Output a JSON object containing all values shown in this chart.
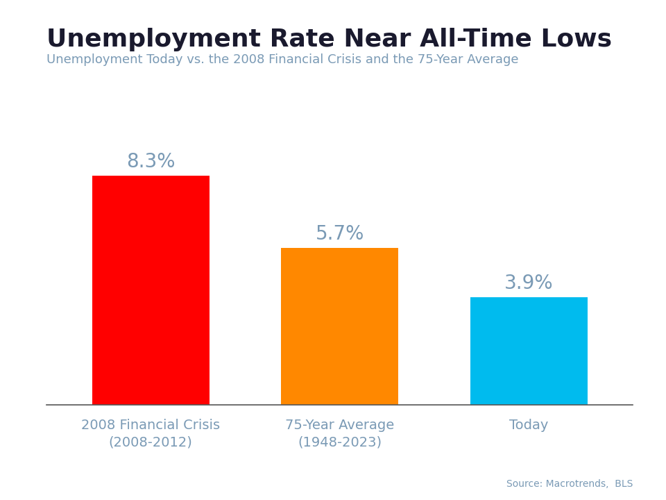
{
  "title": "Unemployment Rate Near All-Time Lows",
  "subtitle": "Unemployment Today vs. the 2008 Financial Crisis and the 75-Year Average",
  "categories": [
    "2008 Financial Crisis\n(2008-2012)",
    "75-Year Average\n(1948-2023)",
    "Today"
  ],
  "values": [
    8.3,
    5.7,
    3.9
  ],
  "bar_colors": [
    "#ff0000",
    "#ff8800",
    "#00bbee"
  ],
  "value_labels": [
    "8.3%",
    "5.7%",
    "3.9%"
  ],
  "source_text": "Source: Macrotrends,  BLS",
  "top_bar_color": "#29abe2",
  "background_color": "#ffffff",
  "title_color": "#1a1a2e",
  "subtitle_color": "#7a9ab5",
  "tick_label_color": "#7a9ab5",
  "value_label_color": "#7a9ab5",
  "source_color": "#7a9ab5",
  "ylim": [
    0,
    10.5
  ],
  "bar_width": 0.62,
  "title_fontsize": 26,
  "subtitle_fontsize": 13,
  "value_fontsize": 20,
  "tick_fontsize": 14,
  "source_fontsize": 10
}
